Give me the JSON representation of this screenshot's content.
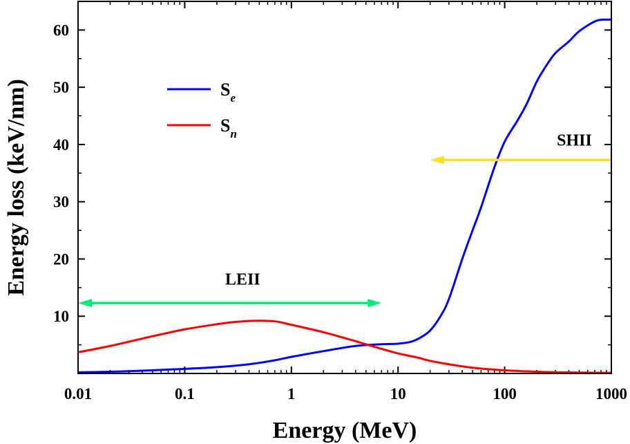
{
  "chart_data": {
    "type": "line",
    "xscale": "log",
    "xlabel": "Energy (MeV)",
    "ylabel": "Energy loss (keV/nm)",
    "xlim": [
      0.01,
      1000
    ],
    "ylim": [
      0,
      65
    ],
    "x_ticks": [
      0.01,
      0.1,
      1,
      10,
      100,
      1000
    ],
    "x_tick_labels": [
      "0.01",
      "0.1",
      "1",
      "10",
      "100",
      "1000"
    ],
    "y_ticks": [
      10,
      20,
      30,
      40,
      50,
      60
    ],
    "y_tick_labels": [
      "10",
      "20",
      "30",
      "40",
      "50",
      "60"
    ],
    "series": [
      {
        "name": "S_e",
        "legend_main": "S",
        "legend_sub": "e",
        "color": "#0000ff",
        "x": [
          0.01,
          0.03,
          0.1,
          0.2,
          0.4,
          0.7,
          1,
          2,
          4,
          7,
          10,
          13,
          16,
          20,
          25,
          30,
          40,
          50,
          60,
          80,
          100,
          130,
          160,
          200,
          250,
          300,
          400,
          450,
          500,
          600,
          700,
          800,
          1000
        ],
        "y": [
          0.2,
          0.4,
          0.8,
          1.1,
          1.6,
          2.3,
          2.9,
          3.9,
          4.8,
          5.1,
          5.2,
          5.5,
          6.2,
          7.5,
          10,
          13,
          20,
          25,
          29,
          36,
          40.5,
          44,
          47,
          51,
          54,
          56,
          58,
          59,
          59.8,
          60.8,
          61.5,
          61.8,
          61.8
        ]
      },
      {
        "name": "S_n",
        "legend_main": "S",
        "legend_sub": "n",
        "color": "#ff0000",
        "x": [
          0.01,
          0.02,
          0.05,
          0.1,
          0.2,
          0.3,
          0.45,
          0.7,
          1,
          2,
          3,
          5,
          7,
          10,
          15,
          20,
          30,
          50,
          100,
          200,
          300,
          500,
          1000
        ],
        "y": [
          3.7,
          4.8,
          6.5,
          7.7,
          8.6,
          9.0,
          9.2,
          9.1,
          8.5,
          7.2,
          6.3,
          5.1,
          4.3,
          3.5,
          2.8,
          2.2,
          1.6,
          1.0,
          0.55,
          0.3,
          0.2,
          0.15,
          0.1
        ]
      }
    ],
    "annotations": [
      {
        "text": "LEII",
        "arrow": "double",
        "color": "#00ee77",
        "x_from": 0.01,
        "x_to": 7,
        "y": 12.3,
        "label_x": 0.35,
        "label_y": 15.5
      },
      {
        "text": "SHII",
        "arrow": "left",
        "color": "#ffdd22",
        "x_from": 1000,
        "x_to": 20,
        "y": 37.3,
        "label_x": 450,
        "label_y": 39.8
      }
    ],
    "legend_position": "upper-left"
  }
}
